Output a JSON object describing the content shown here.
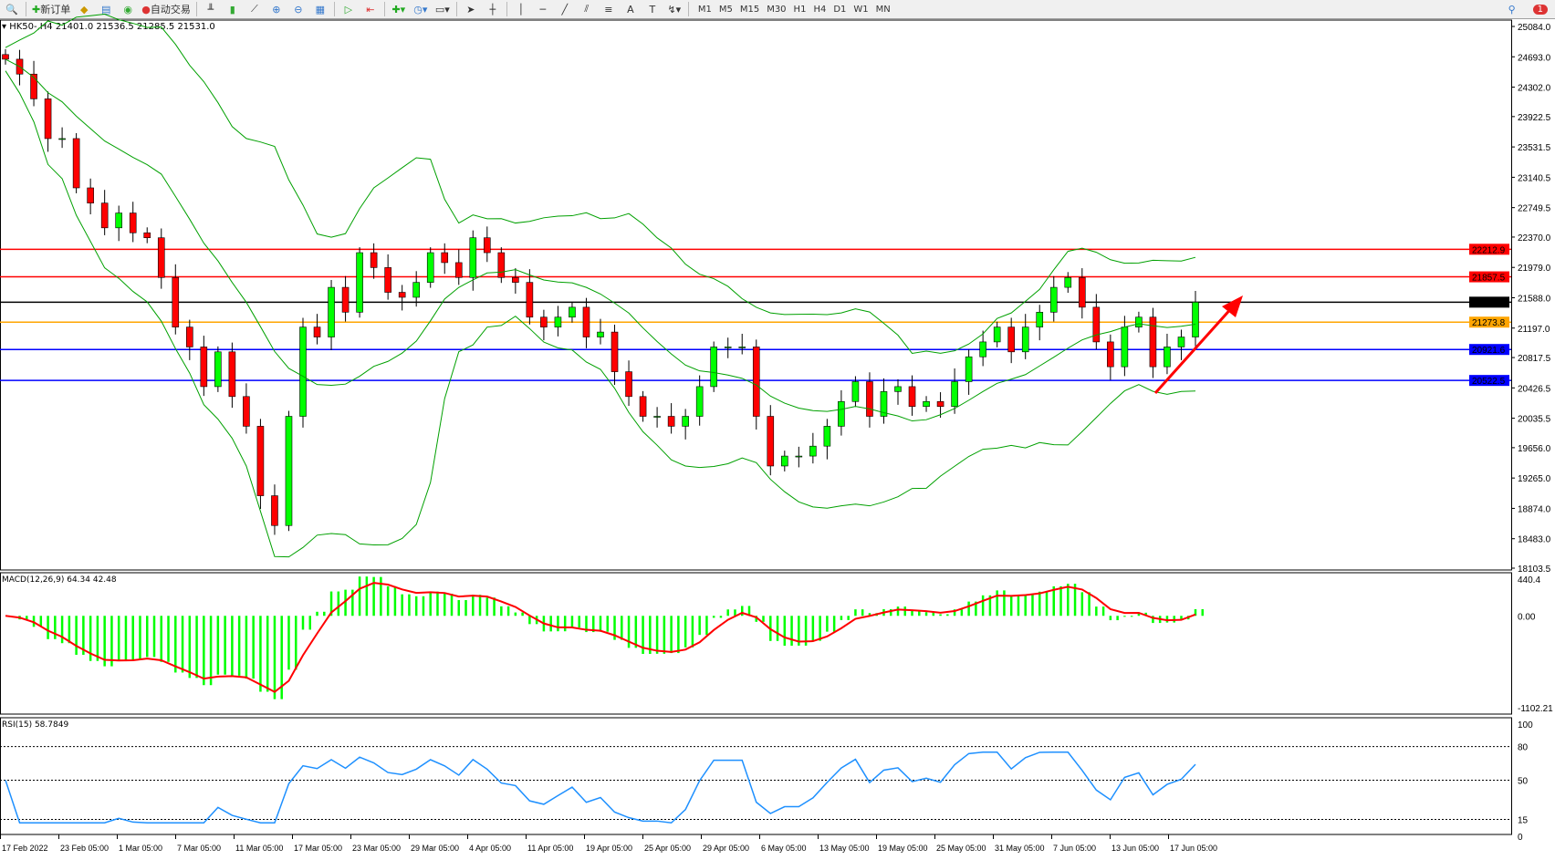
{
  "toolbar": {
    "new_order": "新订单",
    "auto_trading": "自动交易",
    "timeframes": [
      "M1",
      "M5",
      "M15",
      "M30",
      "H1",
      "H4",
      "D1",
      "W1",
      "MN"
    ],
    "notification_count": "1"
  },
  "chart": {
    "header": "HK50-,H4  21401.0 21536.5 21285.5 21531.0",
    "price_ticks": [
      "25084.0",
      "24693.0",
      "24302.0",
      "23922.5",
      "23531.5",
      "23140.5",
      "22749.5",
      "22370.0",
      "21979.0",
      "21588.0",
      "21197.0",
      "20817.5",
      "20426.5",
      "20035.5",
      "19656.0",
      "19265.0",
      "18874.0",
      "18483.0",
      "18103.5"
    ],
    "price_range": [
      18103.5,
      25084.0
    ],
    "levels": [
      {
        "value": "22212.9",
        "color": "#ff0000"
      },
      {
        "value": "21857.5",
        "color": "#ff0000"
      },
      {
        "value": "21531.0",
        "color": "#000000"
      },
      {
        "value": "21273.8",
        "color": "#ffa500"
      },
      {
        "value": "20921.6",
        "color": "#0000ff"
      },
      {
        "value": "20522.5",
        "color": "#0000ff"
      }
    ],
    "closes": [
      24662,
      24470,
      24151,
      23639,
      23639,
      23004,
      22808,
      22489,
      22680,
      22425,
      22361,
      21849,
      21210,
      20954,
      20443,
      20891,
      20315,
      19932,
      19037,
      18653,
      20060,
      21210,
      21082,
      21722,
      21402,
      22169,
      21977,
      21658,
      21594,
      21786,
      22169,
      22041,
      21849,
      22361,
      22169,
      21849,
      21786,
      21338,
      21210,
      21338,
      21466,
      21082,
      21146,
      20635,
      20315,
      20060,
      20060,
      19932,
      20060,
      20443,
      20954,
      20954,
      20954,
      20060,
      19420,
      19548,
      19548,
      19676,
      19932,
      20251,
      20507,
      20060,
      20379,
      20443,
      20187,
      20251,
      20187,
      20507,
      20827,
      21019,
      21210,
      20891,
      21210,
      21402,
      21722,
      21849,
      21466,
      21019,
      20699,
      21210,
      21338,
      20699,
      20954,
      21082,
      21531
    ],
    "colors": {
      "bull": "#00ff00",
      "bear": "#ff0000",
      "band": "#00a000",
      "arrow": "#ff0000"
    }
  },
  "macd": {
    "label": "MACD(12,26,9) 64.34 42.48",
    "ticks": [
      "440.4",
      "0.00",
      "-1102.21"
    ],
    "range": [
      -1102.21,
      440.4
    ]
  },
  "rsi": {
    "label": "RSI(15) 58.7849",
    "ticks": [
      "100",
      "80",
      "50",
      "15",
      "0"
    ]
  },
  "time_axis": [
    "17 Feb 2022",
    "23 Feb 05:00",
    "1 Mar 05:00",
    "7 Mar 05:00",
    "11 Mar 05:00",
    "17 Mar 05:00",
    "23 Mar 05:00",
    "29 Mar 05:00",
    "4 Apr 05:00",
    "11 Apr 05:00",
    "19 Apr 05:00",
    "25 Apr 05:00",
    "29 Apr 05:00",
    "6 May 05:00",
    "13 May 05:00",
    "19 May 05:00",
    "25 May 05:00",
    "31 May 05:00",
    "7 Jun 05:00",
    "13 Jun 05:00",
    "17 Jun 05:00"
  ]
}
